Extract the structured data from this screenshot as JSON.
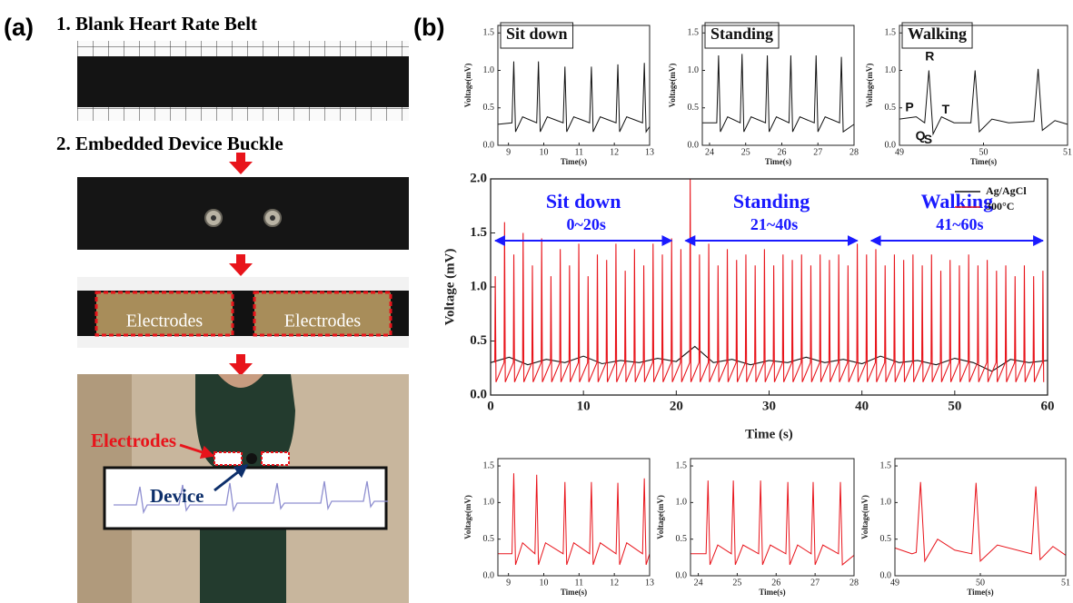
{
  "panel_a": {
    "label": "(a)",
    "step1": "1. Blank Heart Rate Belt",
    "step2": "2. Embedded Device Buckle",
    "electrode_left": "Electrodes",
    "electrode_right": "Electrodes",
    "photo_electrodes": "Electrodes",
    "photo_device": "Device"
  },
  "panel_b": {
    "label": "(b)"
  },
  "chart_data": [
    {
      "type": "line",
      "title": "Sit down",
      "xlabel": "Time(s)",
      "ylabel": "Voltage(mV)",
      "color": "#111111",
      "x": [
        8.7,
        9.1,
        9.15,
        9.2,
        9.4,
        9.8,
        9.85,
        9.9,
        10.1,
        10.55,
        10.6,
        10.65,
        10.85,
        11.3,
        11.35,
        11.4,
        11.6,
        12.05,
        12.1,
        12.15,
        12.35,
        12.8,
        12.85,
        12.9,
        13
      ],
      "values": [
        0.28,
        0.3,
        1.12,
        0.18,
        0.38,
        0.3,
        1.12,
        0.18,
        0.38,
        0.3,
        1.05,
        0.18,
        0.38,
        0.3,
        1.05,
        0.18,
        0.38,
        0.3,
        1.08,
        0.18,
        0.38,
        0.3,
        1.1,
        0.18,
        0.25
      ],
      "xlim": [
        8.7,
        13
      ],
      "xticks": [
        9,
        10,
        11,
        12,
        13
      ],
      "ylim": [
        0,
        1.6
      ],
      "yticks": [
        {
          "value": 0,
          "label": "0.0"
        },
        0.5,
        {
          "value": 1,
          "label": "1.0"
        },
        1.5
      ]
    },
    {
      "type": "line",
      "title": "Standing",
      "xlabel": "Time(s)",
      "ylabel": "Voltage(mV)",
      "color": "#111111",
      "x": [
        23.8,
        24.2,
        24.25,
        24.3,
        24.5,
        24.85,
        24.9,
        24.95,
        25.15,
        25.55,
        25.6,
        25.65,
        25.85,
        26.2,
        26.25,
        26.3,
        26.5,
        26.9,
        26.95,
        27,
        27.2,
        27.6,
        27.65,
        27.7,
        28
      ],
      "values": [
        0.3,
        0.3,
        1.2,
        0.18,
        0.38,
        0.3,
        1.22,
        0.18,
        0.38,
        0.3,
        1.2,
        0.18,
        0.38,
        0.3,
        1.2,
        0.18,
        0.38,
        0.3,
        1.2,
        0.18,
        0.38,
        0.3,
        1.18,
        0.18,
        0.28
      ],
      "xlim": [
        23.8,
        28
      ],
      "xticks": [
        24,
        25,
        26,
        27,
        28
      ],
      "ylim": [
        0,
        1.6
      ],
      "yticks": [
        {
          "value": 0,
          "label": "0.0"
        },
        0.5,
        {
          "value": 1,
          "label": "1.0"
        },
        1.5
      ]
    },
    {
      "type": "line",
      "title": "Walking",
      "xlabel": "Time(s)",
      "ylabel": "Voltage(mV)",
      "color": "#111111",
      "x": [
        49,
        49.2,
        49.3,
        49.35,
        49.4,
        49.5,
        49.65,
        49.85,
        49.9,
        49.95,
        50.1,
        50.3,
        50.6,
        50.65,
        50.7,
        50.85,
        51
      ],
      "values": [
        0.35,
        0.38,
        0.3,
        1.0,
        0.15,
        0.38,
        0.3,
        0.3,
        1.0,
        0.18,
        0.35,
        0.3,
        0.32,
        1.02,
        0.2,
        0.33,
        0.28
      ],
      "xlim": [
        49,
        51
      ],
      "xticks": [
        49,
        50,
        51
      ],
      "ylim": [
        0,
        1.6
      ],
      "yticks": [
        {
          "value": 0,
          "label": "0.0"
        },
        0.5,
        {
          "value": 1,
          "label": "1.0"
        },
        1.5
      ],
      "annotations": [
        {
          "text": "R",
          "x": 49.36,
          "y": 1.18
        },
        {
          "text": "P",
          "x": 49.12,
          "y": 0.5
        },
        {
          "text": "T",
          "x": 49.55,
          "y": 0.47
        },
        {
          "text": "Q",
          "x": 49.25,
          "y": 0.12
        },
        {
          "text": "S",
          "x": 49.34,
          "y": 0.07
        }
      ]
    },
    {
      "type": "line",
      "xlabel": "Time (s)",
      "ylabel": "Voltage (mV)",
      "xlim": [
        0,
        60
      ],
      "xticks": [
        0,
        10,
        20,
        30,
        40,
        50,
        60
      ],
      "ylim": [
        0,
        2
      ],
      "yticks": [
        {
          "value": 0,
          "label": "0.0"
        },
        0.5,
        {
          "value": 1,
          "label": "1.0"
        },
        1.5,
        {
          "value": 2,
          "label": "2.0"
        }
      ],
      "legend": "upper right",
      "annotations": [
        {
          "text": "Sit down",
          "range_text": "0~20s",
          "span": [
            0.5,
            19.5
          ]
        },
        {
          "text": "Standing",
          "range_text": "21~40s",
          "span": [
            21,
            39.5
          ]
        },
        {
          "text": "Walking",
          "range_text": "41~60s",
          "span": [
            41,
            59.5
          ]
        }
      ],
      "series": [
        {
          "name": "Ag/AgCl",
          "color": "#111111",
          "x": [
            0,
            2,
            4,
            6,
            8,
            10,
            12,
            14,
            16,
            18,
            20,
            22,
            24,
            26,
            28,
            30,
            32,
            34,
            36,
            38,
            40,
            42,
            44,
            46,
            48,
            50,
            52,
            54,
            56,
            58,
            60
          ],
          "values": [
            0.3,
            0.35,
            0.28,
            0.33,
            0.3,
            0.36,
            0.29,
            0.32,
            0.3,
            0.34,
            0.31,
            0.45,
            0.3,
            0.33,
            0.28,
            0.32,
            0.3,
            0.35,
            0.3,
            0.33,
            0.29,
            0.36,
            0.3,
            0.32,
            0.28,
            0.34,
            0.3,
            0.22,
            0.33,
            0.3,
            0.32
          ]
        },
        {
          "name": "300°C",
          "color": "#e8141b",
          "x": [
            0.45,
            0.5,
            0.58,
            1.45,
            1.5,
            1.58,
            2.45,
            2.5,
            2.58,
            3.45,
            3.5,
            3.58,
            4.45,
            4.5,
            4.58,
            5.45,
            5.5,
            5.58,
            6.45,
            6.5,
            6.58,
            7.45,
            7.5,
            7.58,
            8.45,
            8.5,
            8.58,
            9.45,
            9.5,
            9.58,
            10.45,
            10.5,
            10.58,
            11.45,
            11.5,
            11.58,
            12.45,
            12.5,
            12.58,
            13.45,
            13.5,
            13.58,
            14.45,
            14.5,
            14.58,
            15.45,
            15.5,
            15.58,
            16.45,
            16.5,
            16.58,
            17.45,
            17.5,
            17.58,
            18.45,
            18.5,
            18.58,
            19.45,
            19.5,
            19.58,
            20.45,
            20.5,
            20.58,
            21.45,
            21.5,
            21.58,
            22.45,
            22.5,
            22.58,
            23.45,
            23.5,
            23.58,
            24.45,
            24.5,
            24.58,
            25.45,
            25.5,
            25.58,
            26.45,
            26.5,
            26.58,
            27.45,
            27.5,
            27.58,
            28.45,
            28.5,
            28.58,
            29.45,
            29.5,
            29.58,
            30.45,
            30.5,
            30.58,
            31.45,
            31.5,
            31.58,
            32.45,
            32.5,
            32.58,
            33.45,
            33.5,
            33.58,
            34.45,
            34.5,
            34.58,
            35.45,
            35.5,
            35.58,
            36.45,
            36.5,
            36.58,
            37.45,
            37.5,
            37.58,
            38.45,
            38.5,
            38.58,
            39.45,
            39.5,
            39.58,
            40.45,
            40.5,
            40.58,
            41.45,
            41.5,
            41.58,
            42.45,
            42.5,
            42.58,
            43.45,
            43.5,
            43.58,
            44.45,
            44.5,
            44.58,
            45.45,
            45.5,
            45.58,
            46.45,
            46.5,
            46.58,
            47.45,
            47.5,
            47.58,
            48.45,
            48.5,
            48.58,
            49.45,
            49.5,
            49.58,
            50.45,
            50.5,
            50.58,
            51.45,
            51.5,
            51.58,
            52.45,
            52.5,
            52.58,
            53.45,
            53.5,
            53.58,
            54.45,
            54.5,
            54.58,
            55.45,
            55.5,
            55.58,
            56.45,
            56.5,
            56.58,
            57.45,
            57.5,
            57.58,
            58.45,
            58.5,
            58.58,
            59.45,
            59.5,
            59.58
          ],
          "values": [
            0.3,
            1.1,
            0.12,
            0.3,
            1.6,
            0.12,
            0.3,
            1.3,
            0.12,
            0.3,
            1.5,
            0.12,
            0.3,
            1.2,
            0.12,
            0.3,
            1.45,
            0.12,
            0.3,
            1.1,
            0.12,
            0.3,
            1.35,
            0.12,
            0.3,
            1.2,
            0.12,
            0.3,
            1.4,
            0.12,
            0.3,
            1.1,
            0.12,
            0.3,
            1.3,
            0.12,
            0.3,
            1.25,
            0.12,
            0.3,
            1.4,
            0.12,
            0.3,
            1.15,
            0.12,
            0.3,
            1.35,
            0.12,
            0.3,
            1.2,
            0.12,
            0.3,
            1.4,
            0.12,
            0.3,
            1.3,
            0.12,
            0.3,
            1.45,
            0.12,
            0.3,
            1.35,
            0.12,
            0.3,
            2.0,
            0.12,
            0.3,
            1.3,
            0.12,
            0.3,
            1.4,
            0.12,
            0.3,
            1.2,
            0.12,
            0.3,
            1.35,
            0.12,
            0.3,
            1.25,
            0.12,
            0.3,
            1.3,
            0.12,
            0.3,
            1.2,
            0.12,
            0.3,
            1.35,
            0.12,
            0.3,
            1.2,
            0.12,
            0.3,
            1.3,
            0.12,
            0.3,
            1.25,
            0.12,
            0.3,
            1.3,
            0.12,
            0.3,
            1.2,
            0.12,
            0.3,
            1.3,
            0.12,
            0.3,
            1.25,
            0.12,
            0.3,
            1.3,
            0.12,
            0.3,
            1.2,
            0.12,
            0.3,
            1.4,
            0.12,
            0.3,
            1.3,
            0.12,
            0.3,
            1.35,
            0.12,
            0.3,
            1.2,
            0.12,
            0.3,
            1.3,
            0.12,
            0.3,
            1.25,
            0.12,
            0.3,
            1.3,
            0.12,
            0.3,
            1.2,
            0.12,
            0.3,
            1.3,
            0.12,
            0.3,
            1.15,
            0.12,
            0.3,
            1.25,
            0.12,
            0.3,
            1.2,
            0.12,
            0.3,
            1.3,
            0.12,
            0.3,
            1.2,
            0.12,
            0.3,
            1.25,
            0.12,
            0.3,
            1.15,
            0.12,
            0.3,
            1.2,
            0.12,
            0.3,
            1.1,
            0.12,
            0.3,
            1.2,
            0.12,
            0.3,
            1.1,
            0.12,
            0.3,
            1.15,
            0.12
          ]
        }
      ]
    },
    {
      "type": "line",
      "xlabel": "Time(s)",
      "ylabel": "Voltage(mV)",
      "color": "#e8141b",
      "x": [
        8.7,
        9.1,
        9.15,
        9.2,
        9.4,
        9.75,
        9.8,
        9.85,
        10.05,
        10.55,
        10.6,
        10.65,
        10.85,
        11.3,
        11.35,
        11.4,
        11.6,
        12.05,
        12.1,
        12.15,
        12.35,
        12.8,
        12.85,
        12.9,
        13
      ],
      "values": [
        0.3,
        0.3,
        1.4,
        0.15,
        0.45,
        0.3,
        1.38,
        0.15,
        0.45,
        0.3,
        1.28,
        0.15,
        0.45,
        0.3,
        1.28,
        0.15,
        0.45,
        0.3,
        1.27,
        0.15,
        0.45,
        0.3,
        1.33,
        0.15,
        0.3
      ],
      "xlim": [
        8.7,
        13
      ],
      "xticks": [
        9,
        10,
        11,
        12,
        13
      ],
      "ylim": [
        0,
        1.6
      ],
      "yticks": [
        {
          "value": 0,
          "label": "0.0"
        },
        0.5,
        {
          "value": 1,
          "label": "1.0"
        },
        1.5
      ]
    },
    {
      "type": "line",
      "xlabel": "Time(s)",
      "ylabel": "Voltage(mV)",
      "color": "#e8141b",
      "x": [
        23.8,
        24.2,
        24.25,
        24.3,
        24.5,
        24.85,
        24.9,
        24.95,
        25.15,
        25.55,
        25.6,
        25.65,
        25.85,
        26.25,
        26.3,
        26.35,
        26.55,
        26.9,
        26.95,
        27,
        27.2,
        27.6,
        27.65,
        27.7,
        28
      ],
      "values": [
        0.3,
        0.3,
        1.3,
        0.15,
        0.42,
        0.3,
        1.3,
        0.15,
        0.42,
        0.3,
        1.3,
        0.15,
        0.42,
        0.3,
        1.28,
        0.15,
        0.42,
        0.3,
        1.28,
        0.15,
        0.42,
        0.3,
        1.28,
        0.15,
        0.28
      ],
      "xlim": [
        23.8,
        28
      ],
      "xticks": [
        24,
        25,
        26,
        27,
        28
      ],
      "ylim": [
        0,
        1.6
      ],
      "yticks": [
        {
          "value": 0,
          "label": "0.0"
        },
        0.5,
        {
          "value": 1,
          "label": "1.0"
        },
        1.5
      ]
    },
    {
      "type": "line",
      "xlabel": "Time(s)",
      "ylabel": "Voltage(mV)",
      "color": "#e8141b",
      "x": [
        49,
        49.2,
        49.25,
        49.3,
        49.35,
        49.5,
        49.7,
        49.9,
        49.95,
        50,
        50.2,
        50.6,
        50.65,
        50.7,
        50.85,
        51
      ],
      "values": [
        0.38,
        0.3,
        0.32,
        1.28,
        0.2,
        0.5,
        0.35,
        0.3,
        1.27,
        0.2,
        0.42,
        0.3,
        1.22,
        0.22,
        0.4,
        0.28
      ],
      "xlim": [
        49,
        51
      ],
      "xticks": [
        49,
        50,
        51
      ],
      "ylim": [
        0,
        1.6
      ],
      "yticks": [
        {
          "value": 0,
          "label": "0.0"
        },
        0.5,
        {
          "value": 1,
          "label": "1.0"
        },
        1.5
      ]
    }
  ]
}
